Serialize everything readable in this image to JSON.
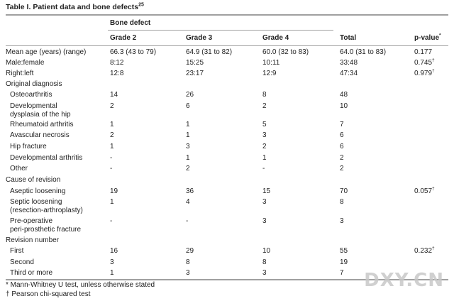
{
  "table": {
    "title": "Table I. Patient data and bone defects",
    "title_sup": "25",
    "group_header": "Bone defect",
    "columns": [
      "Grade 2",
      "Grade 3",
      "Grade 4",
      "Total",
      "p-value"
    ],
    "pvalue_sup": "*",
    "rows": [
      {
        "label": "Mean age (years) (range)",
        "g2": "66.3 (43 to 79)",
        "g3": "64.9 (31 to 82)",
        "g4": "60.0 (32 to 83)",
        "total": "64.0 (31 to 83)",
        "p": "0.177",
        "p_sup": ""
      },
      {
        "label": "Male:female",
        "g2": "8:12",
        "g3": "15:25",
        "g4": "10:11",
        "total": "33:48",
        "p": "0.745",
        "p_sup": "†"
      },
      {
        "label": "Right:left",
        "g2": "12:8",
        "g3": "23:17",
        "g4": "12:9",
        "total": "47:34",
        "p": "0.979",
        "p_sup": "†"
      },
      {
        "label": "Original diagnosis",
        "g2": "",
        "g3": "",
        "g4": "",
        "total": "",
        "p": "",
        "p_sup": ""
      },
      {
        "label": "Osteoarthritis",
        "g2": "14",
        "g3": "26",
        "g4": "8",
        "total": "48",
        "p": "",
        "p_sup": ""
      },
      {
        "label": "Developmental",
        "label2": "dysplasia of the hip",
        "g2": "2",
        "g3": "6",
        "g4": "2",
        "total": "10",
        "p": "",
        "p_sup": ""
      },
      {
        "label": "Rheumatoid arthritis",
        "g2": "1",
        "g3": "1",
        "g4": "5",
        "total": "7",
        "p": "",
        "p_sup": ""
      },
      {
        "label": "Avascular necrosis",
        "g2": "2",
        "g3": "1",
        "g4": "3",
        "total": "6",
        "p": "",
        "p_sup": ""
      },
      {
        "label": "Hip fracture",
        "g2": "1",
        "g3": "3",
        "g4": "2",
        "total": "6",
        "p": "",
        "p_sup": ""
      },
      {
        "label": "Developmental arthritis",
        "g2": "-",
        "g3": "1",
        "g4": "1",
        "total": "2",
        "p": "",
        "p_sup": ""
      },
      {
        "label": "Other",
        "g2": "-",
        "g3": "2",
        "g4": "-",
        "total": "2",
        "p": "",
        "p_sup": ""
      },
      {
        "label": "Cause of revision",
        "g2": "",
        "g3": "",
        "g4": "",
        "total": "",
        "p": "",
        "p_sup": ""
      },
      {
        "label": "Aseptic loosening",
        "g2": "19",
        "g3": "36",
        "g4": "15",
        "total": "70",
        "p": "0.057",
        "p_sup": "†"
      },
      {
        "label": "Septic loosening",
        "label2": "(resection-arthroplasty)",
        "g2": "1",
        "g3": "4",
        "g4": "3",
        "total": "8",
        "p": "",
        "p_sup": ""
      },
      {
        "label": "Pre-operative",
        "label2": "peri-prosthetic fracture",
        "g2": "-",
        "g3": "-",
        "g4": "3",
        "total": "3",
        "p": "",
        "p_sup": ""
      },
      {
        "label": "Revision number",
        "g2": "",
        "g3": "",
        "g4": "",
        "total": "",
        "p": "",
        "p_sup": ""
      },
      {
        "label": "First",
        "g2": "16",
        "g3": "29",
        "g4": "10",
        "total": "55",
        "p": "0.232",
        "p_sup": "†"
      },
      {
        "label": "Second",
        "g2": "3",
        "g3": "8",
        "g4": "8",
        "total": "19",
        "p": "",
        "p_sup": ""
      },
      {
        "label": "Third or more",
        "g2": "1",
        "g3": "3",
        "g4": "3",
        "total": "7",
        "p": "",
        "p_sup": ""
      }
    ],
    "footnotes": [
      "* Mann-Whitney U test, unless otherwise stated",
      "† Pearson chi-squared test"
    ]
  },
  "watermark": "DXY.CN"
}
